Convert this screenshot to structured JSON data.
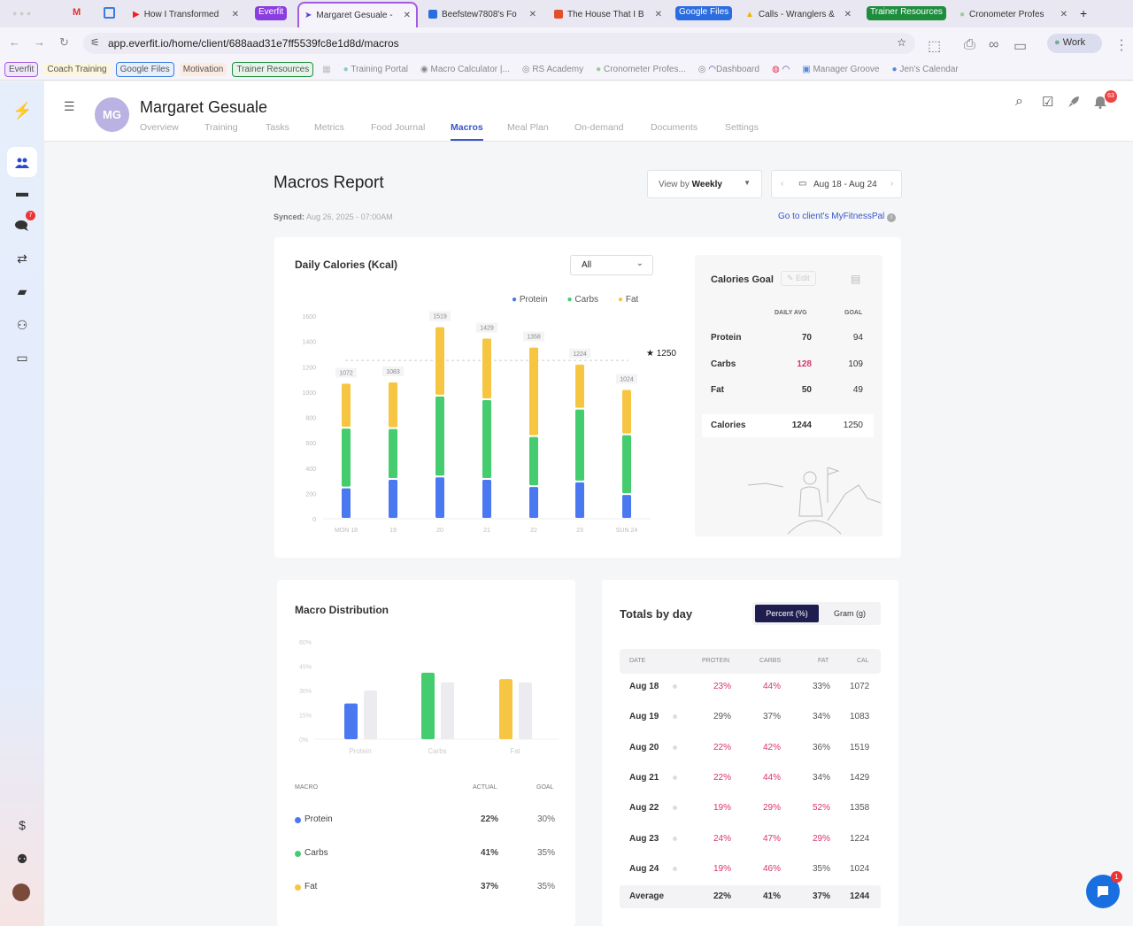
{
  "browser": {
    "tabs": [
      {
        "label": "How I Transformed"
      },
      {
        "label": "Margaret Gesuale -"
      },
      {
        "label": "Beefstew7808's Fo"
      },
      {
        "label": "The House That I B"
      },
      {
        "label": "Calls - Wranglers &"
      },
      {
        "label": "Cronometer Profes"
      }
    ],
    "groups": [
      "Everfit",
      "Google Files",
      "Trainer Resources"
    ],
    "url": "app.everfit.io/home/client/688aad31e7ff5539fc8e1d8d/macros",
    "profile": "Work",
    "bookmarks": [
      "Everfit",
      "Coach Training",
      "Google Files",
      "Motivation",
      "Trainer Resources",
      "Training Portal",
      "Macro Calculator |...",
      "RS Academy",
      "Cronometer Profes...",
      "Dashboard",
      "Manager Groove",
      "Jen's Calendar"
    ]
  },
  "sidebar": {
    "chat_badge": "7"
  },
  "header": {
    "avatar": "MG",
    "client_name": "Margaret Gesuale",
    "notif_badge": "63",
    "tabs": [
      "Overview",
      "Training",
      "Tasks",
      "Metrics",
      "Food Journal",
      "Macros",
      "Meal Plan",
      "On-demand",
      "Documents",
      "Settings"
    ]
  },
  "report": {
    "title": "Macros Report",
    "synced_label": "Synced:",
    "synced_value": "Aug 26, 2025 - 07:00AM",
    "view_by_label": "View by",
    "view_by_value": "Weekly",
    "date_range": "Aug 18 - Aug 24",
    "mfp_link": "Go to client's MyFitnessPal"
  },
  "colors": {
    "protein": "#4a78f0",
    "carbs": "#45cc6e",
    "fat": "#f6c642",
    "goal_bar": "#ebebf0"
  },
  "chart_data": [
    {
      "type": "bar",
      "stacked": true,
      "title": "Daily Calories (Kcal)",
      "filter": "All",
      "categories": [
        "MON 18",
        "19",
        "20",
        "21",
        "22",
        "23",
        "SUN 24"
      ],
      "totals": [
        1072,
        1083,
        1519,
        1429,
        1358,
        1224,
        1024
      ],
      "series": [
        {
          "name": "Protein",
          "values": [
            247,
            314,
            334,
            314,
            258,
            294,
            195
          ]
        },
        {
          "name": "Carbs",
          "values": [
            472,
            401,
            638,
            629,
            394,
            575,
            471
          ]
        },
        {
          "name": "Fat",
          "values": [
            354,
            368,
            547,
            486,
            706,
            355,
            358
          ]
        }
      ],
      "yticks": [
        0,
        200,
        400,
        600,
        800,
        1000,
        1200,
        1400,
        1600
      ],
      "ylim": [
        0,
        1600
      ],
      "goal_line": 1250,
      "goal_label": "1250",
      "legend": "top-right"
    },
    {
      "type": "bar",
      "title": "Macro Distribution",
      "categories": [
        "Protein",
        "Carbs",
        "Fat"
      ],
      "series": [
        {
          "name": "Actual",
          "values": [
            22,
            41,
            37
          ]
        },
        {
          "name": "Goal",
          "values": [
            30,
            35,
            35
          ]
        }
      ],
      "yticks": [
        "0%",
        "15%",
        "30%",
        "45%",
        "60%"
      ],
      "ylim": [
        0,
        60
      ]
    }
  ],
  "goal": {
    "title": "Calories Goal",
    "edit": "Edit",
    "cols": [
      "DAILY AVG",
      "GOAL"
    ],
    "rows": [
      {
        "name": "Protein",
        "avg": "70",
        "goal": "94",
        "over": false
      },
      {
        "name": "Carbs",
        "avg": "128",
        "goal": "109",
        "over": true
      },
      {
        "name": "Fat",
        "avg": "50",
        "goal": "49",
        "over": false
      }
    ],
    "total": {
      "name": "Calories",
      "avg": "1244",
      "goal": "1250"
    }
  },
  "distribution": {
    "cols": [
      "MACRO",
      "ACTUAL",
      "GOAL"
    ],
    "rows": [
      {
        "name": "Protein",
        "actual": "22%",
        "goal": "30%"
      },
      {
        "name": "Carbs",
        "actual": "41%",
        "goal": "35%"
      },
      {
        "name": "Fat",
        "actual": "37%",
        "goal": "35%"
      }
    ]
  },
  "totals": {
    "title": "Totals by day",
    "toggle": [
      "Percent (%)",
      "Gram (g)"
    ],
    "cols": [
      "DATE",
      "PROTEIN",
      "CARBS",
      "FAT",
      "CAL"
    ],
    "rows": [
      {
        "date": "Aug 18",
        "p": "23%",
        "c": "44%",
        "f": "33%",
        "cal": "1072",
        "hl": [
          1,
          1,
          0
        ]
      },
      {
        "date": "Aug 19",
        "p": "29%",
        "c": "37%",
        "f": "34%",
        "cal": "1083",
        "hl": [
          0,
          0,
          0
        ]
      },
      {
        "date": "Aug 20",
        "p": "22%",
        "c": "42%",
        "f": "36%",
        "cal": "1519",
        "hl": [
          1,
          1,
          0
        ]
      },
      {
        "date": "Aug 21",
        "p": "22%",
        "c": "44%",
        "f": "34%",
        "cal": "1429",
        "hl": [
          1,
          1,
          0
        ]
      },
      {
        "date": "Aug 22",
        "p": "19%",
        "c": "29%",
        "f": "52%",
        "cal": "1358",
        "hl": [
          1,
          1,
          1
        ]
      },
      {
        "date": "Aug 23",
        "p": "24%",
        "c": "47%",
        "f": "29%",
        "cal": "1224",
        "hl": [
          1,
          1,
          1
        ]
      },
      {
        "date": "Aug 24",
        "p": "19%",
        "c": "46%",
        "f": "35%",
        "cal": "1024",
        "hl": [
          1,
          1,
          0
        ]
      }
    ],
    "average": {
      "date": "Average",
      "p": "22%",
      "c": "41%",
      "f": "37%",
      "cal": "1244"
    }
  },
  "chat_badge": "1"
}
